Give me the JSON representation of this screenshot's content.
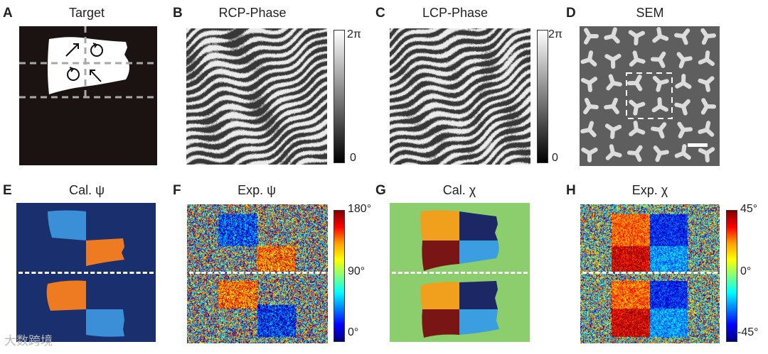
{
  "panels": [
    {
      "letter": "A",
      "title": "Target"
    },
    {
      "letter": "B",
      "title": "RCP-Phase"
    },
    {
      "letter": "C",
      "title": "LCP-Phase"
    },
    {
      "letter": "D",
      "title": "SEM"
    },
    {
      "letter": "E",
      "title": "Cal. ψ"
    },
    {
      "letter": "F",
      "title": "Exp. ψ"
    },
    {
      "letter": "G",
      "title": "Cal. χ"
    },
    {
      "letter": "H",
      "title": "Exp. χ"
    }
  ],
  "colorbars": {
    "phase": {
      "max": "2π",
      "min": "0"
    },
    "psi": {
      "max": "180°",
      "mid": "90°",
      "min": "0°"
    },
    "chi": {
      "max": "45°",
      "mid": "0°",
      "min": "-45°"
    }
  },
  "watermark": "大数跨境",
  "colors": {
    "target_bg": "#1b1212",
    "cal_psi_bg": "#1a2f6e",
    "cal_psi_blue": "#3a8fd6",
    "cal_psi_orange": "#ee7b22",
    "cal_chi_bg": "#8ccd6e",
    "cal_chi_orange": "#f0a01c",
    "cal_chi_darkred": "#7a1515",
    "cal_chi_navy": "#1c2766",
    "cal_chi_lightblue": "#3a9ee0"
  }
}
